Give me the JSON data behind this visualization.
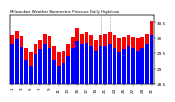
{
  "title": "Milwaukee Weather Barometric Pressure Daily High/Low",
  "high_color": "#ff0000",
  "low_color": "#0000ff",
  "background_color": "#ffffff",
  "dates": [
    "1",
    "2",
    "3",
    "4",
    "5",
    "6",
    "7",
    "8",
    "9",
    "10",
    "11",
    "12",
    "13",
    "14",
    "15",
    "16",
    "17",
    "18",
    "19",
    "20",
    "21",
    "22",
    "23",
    "24",
    "25",
    "26",
    "27",
    "28",
    "29",
    "30",
    "31"
  ],
  "highs": [
    30.1,
    30.22,
    30.05,
    29.65,
    29.55,
    29.8,
    29.92,
    30.12,
    30.05,
    29.72,
    29.52,
    29.58,
    29.78,
    30.02,
    30.32,
    30.12,
    30.18,
    30.08,
    29.92,
    30.08,
    30.12,
    30.18,
    30.08,
    29.98,
    30.02,
    30.08,
    30.02,
    29.98,
    30.02,
    30.12,
    30.55
  ],
  "lows": [
    29.8,
    29.95,
    29.7,
    29.28,
    29.08,
    29.48,
    29.62,
    29.78,
    29.68,
    29.28,
    29.08,
    29.18,
    29.42,
    29.68,
    29.88,
    29.78,
    29.82,
    29.72,
    29.58,
    29.72,
    29.72,
    29.78,
    29.68,
    29.52,
    29.62,
    29.72,
    29.68,
    29.58,
    29.68,
    29.78,
    30.08
  ],
  "ylim": [
    28.5,
    30.75
  ],
  "yticks": [
    28.5,
    29.0,
    29.5,
    30.0,
    30.5
  ],
  "ytick_labels": [
    "28.5",
    "29",
    "29.5",
    "30",
    "30.5"
  ],
  "dotted_cols": [
    19,
    21
  ],
  "bar_width": 0.8
}
